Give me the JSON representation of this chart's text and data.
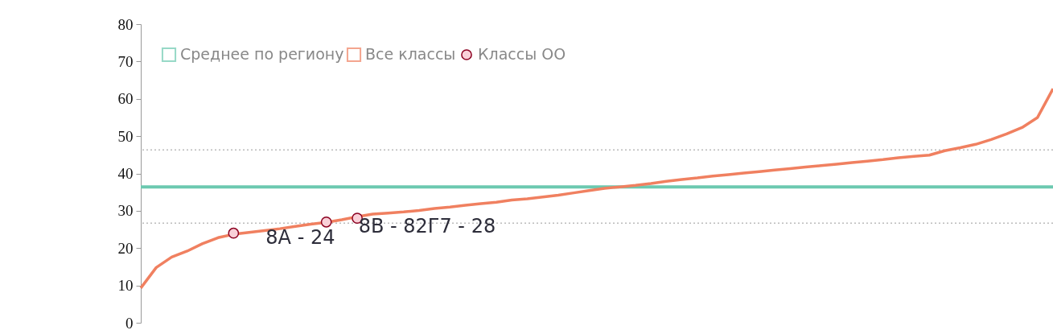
{
  "chart_data": {
    "type": "line",
    "categories": [
      null,
      null,
      null,
      null,
      null,
      null,
      null,
      null,
      null,
      null,
      null,
      null,
      null,
      null,
      null,
      null,
      null,
      null,
      null,
      null,
      null,
      null,
      null,
      null,
      null,
      null,
      null,
      null,
      null,
      null,
      null,
      null,
      null,
      null,
      null,
      null,
      null,
      null,
      null,
      null,
      null,
      null,
      null,
      null,
      null,
      null,
      null,
      null,
      null,
      null,
      null,
      null,
      null,
      null,
      null,
      null,
      null,
      null,
      null,
      null
    ],
    "series": [
      {
        "name": "Среднее по региону",
        "type": "line",
        "color": "#6cc9b0",
        "line_style": "solid",
        "values": [
          36.4,
          36.4,
          36.4,
          36.4,
          36.4,
          36.4,
          36.4,
          36.4,
          36.4,
          36.4,
          36.4,
          36.4,
          36.4,
          36.4,
          36.4,
          36.4,
          36.4,
          36.4,
          36.4,
          36.4,
          36.4,
          36.4,
          36.4,
          36.4,
          36.4,
          36.4,
          36.4,
          36.4,
          36.4,
          36.4,
          36.4,
          36.4,
          36.4,
          36.4,
          36.4,
          36.4,
          36.4,
          36.4,
          36.4,
          36.4,
          36.4,
          36.4,
          36.4,
          36.4,
          36.4,
          36.4,
          36.4,
          36.4,
          36.4,
          36.4,
          36.4,
          36.4,
          36.4,
          36.4,
          36.4,
          36.4,
          36.4,
          36.4,
          36.4,
          36.4
        ]
      },
      {
        "name": "Все классы",
        "line_style": "solid",
        "color": "#f08060",
        "values": [
          9.3,
          14.8,
          17.6,
          19.2,
          21.2,
          22.8,
          23.7,
          24.2,
          24.7,
          25.2,
          25.8,
          26.4,
          26.9,
          27.6,
          28.4,
          29.1,
          29.4,
          29.7,
          30.1,
          30.6,
          31,
          31.5,
          31.9,
          32.3,
          32.9,
          33.2,
          33.7,
          34.2,
          34.8,
          35.4,
          36,
          36.4,
          36.8,
          37.3,
          37.9,
          38.4,
          38.8,
          39.3,
          39.7,
          40.1,
          40.5,
          40.9,
          41.3,
          41.7,
          42.1,
          42.5,
          42.9,
          43.3,
          43.7,
          44.2,
          44.6,
          44.9,
          46.1,
          46.9,
          47.8,
          49.1,
          50.6,
          52.3,
          55,
          62.7
        ]
      },
      {
        "name": "Классы ОО",
        "type": "scatter",
        "marker": "circle",
        "color": "#f9d0d8",
        "values": [
          null,
          null,
          null,
          null,
          null,
          null,
          24,
          null,
          null,
          null,
          null,
          null,
          27,
          null,
          28,
          null,
          null,
          null,
          null,
          null,
          null,
          null,
          null,
          null,
          null,
          null,
          null,
          null,
          null,
          null,
          null,
          null,
          null,
          null,
          null,
          null,
          null,
          null,
          null,
          null,
          null,
          null,
          null,
          null,
          null,
          null,
          null,
          null,
          null,
          null,
          null,
          null,
          null,
          null,
          null,
          null,
          null,
          null,
          null,
          null
        ],
        "value_labels": [
          null,
          null,
          null,
          null,
          null,
          null,
          "8А - 24",
          null,
          null,
          null,
          null,
          null,
          "8В - 82Г7 - 28",
          null,
          null,
          null,
          null,
          null,
          null,
          null,
          null,
          null,
          null,
          null,
          null,
          null,
          null,
          null,
          null,
          null,
          null,
          null,
          null,
          null,
          null,
          null,
          null,
          null,
          null,
          null,
          null,
          null,
          null,
          null,
          null,
          null,
          null,
          null,
          null,
          null,
          null,
          null,
          null,
          null,
          null,
          null,
          null,
          null,
          null,
          null
        ]
      }
    ],
    "ref_lines": [
      {
        "axis": "y",
        "value": 46.3,
        "color": "#bbbbbb",
        "line_style": "dotted"
      },
      {
        "axis": "y",
        "value": 26.7,
        "color": "#bbbbbb",
        "line_style": "dotted"
      }
    ],
    "ylim": [
      0,
      80
    ],
    "yticks": [
      0,
      10,
      20,
      30,
      40,
      50,
      60,
      70,
      80
    ],
    "tick_labels": "y",
    "grid": false,
    "legend": "top left"
  }
}
